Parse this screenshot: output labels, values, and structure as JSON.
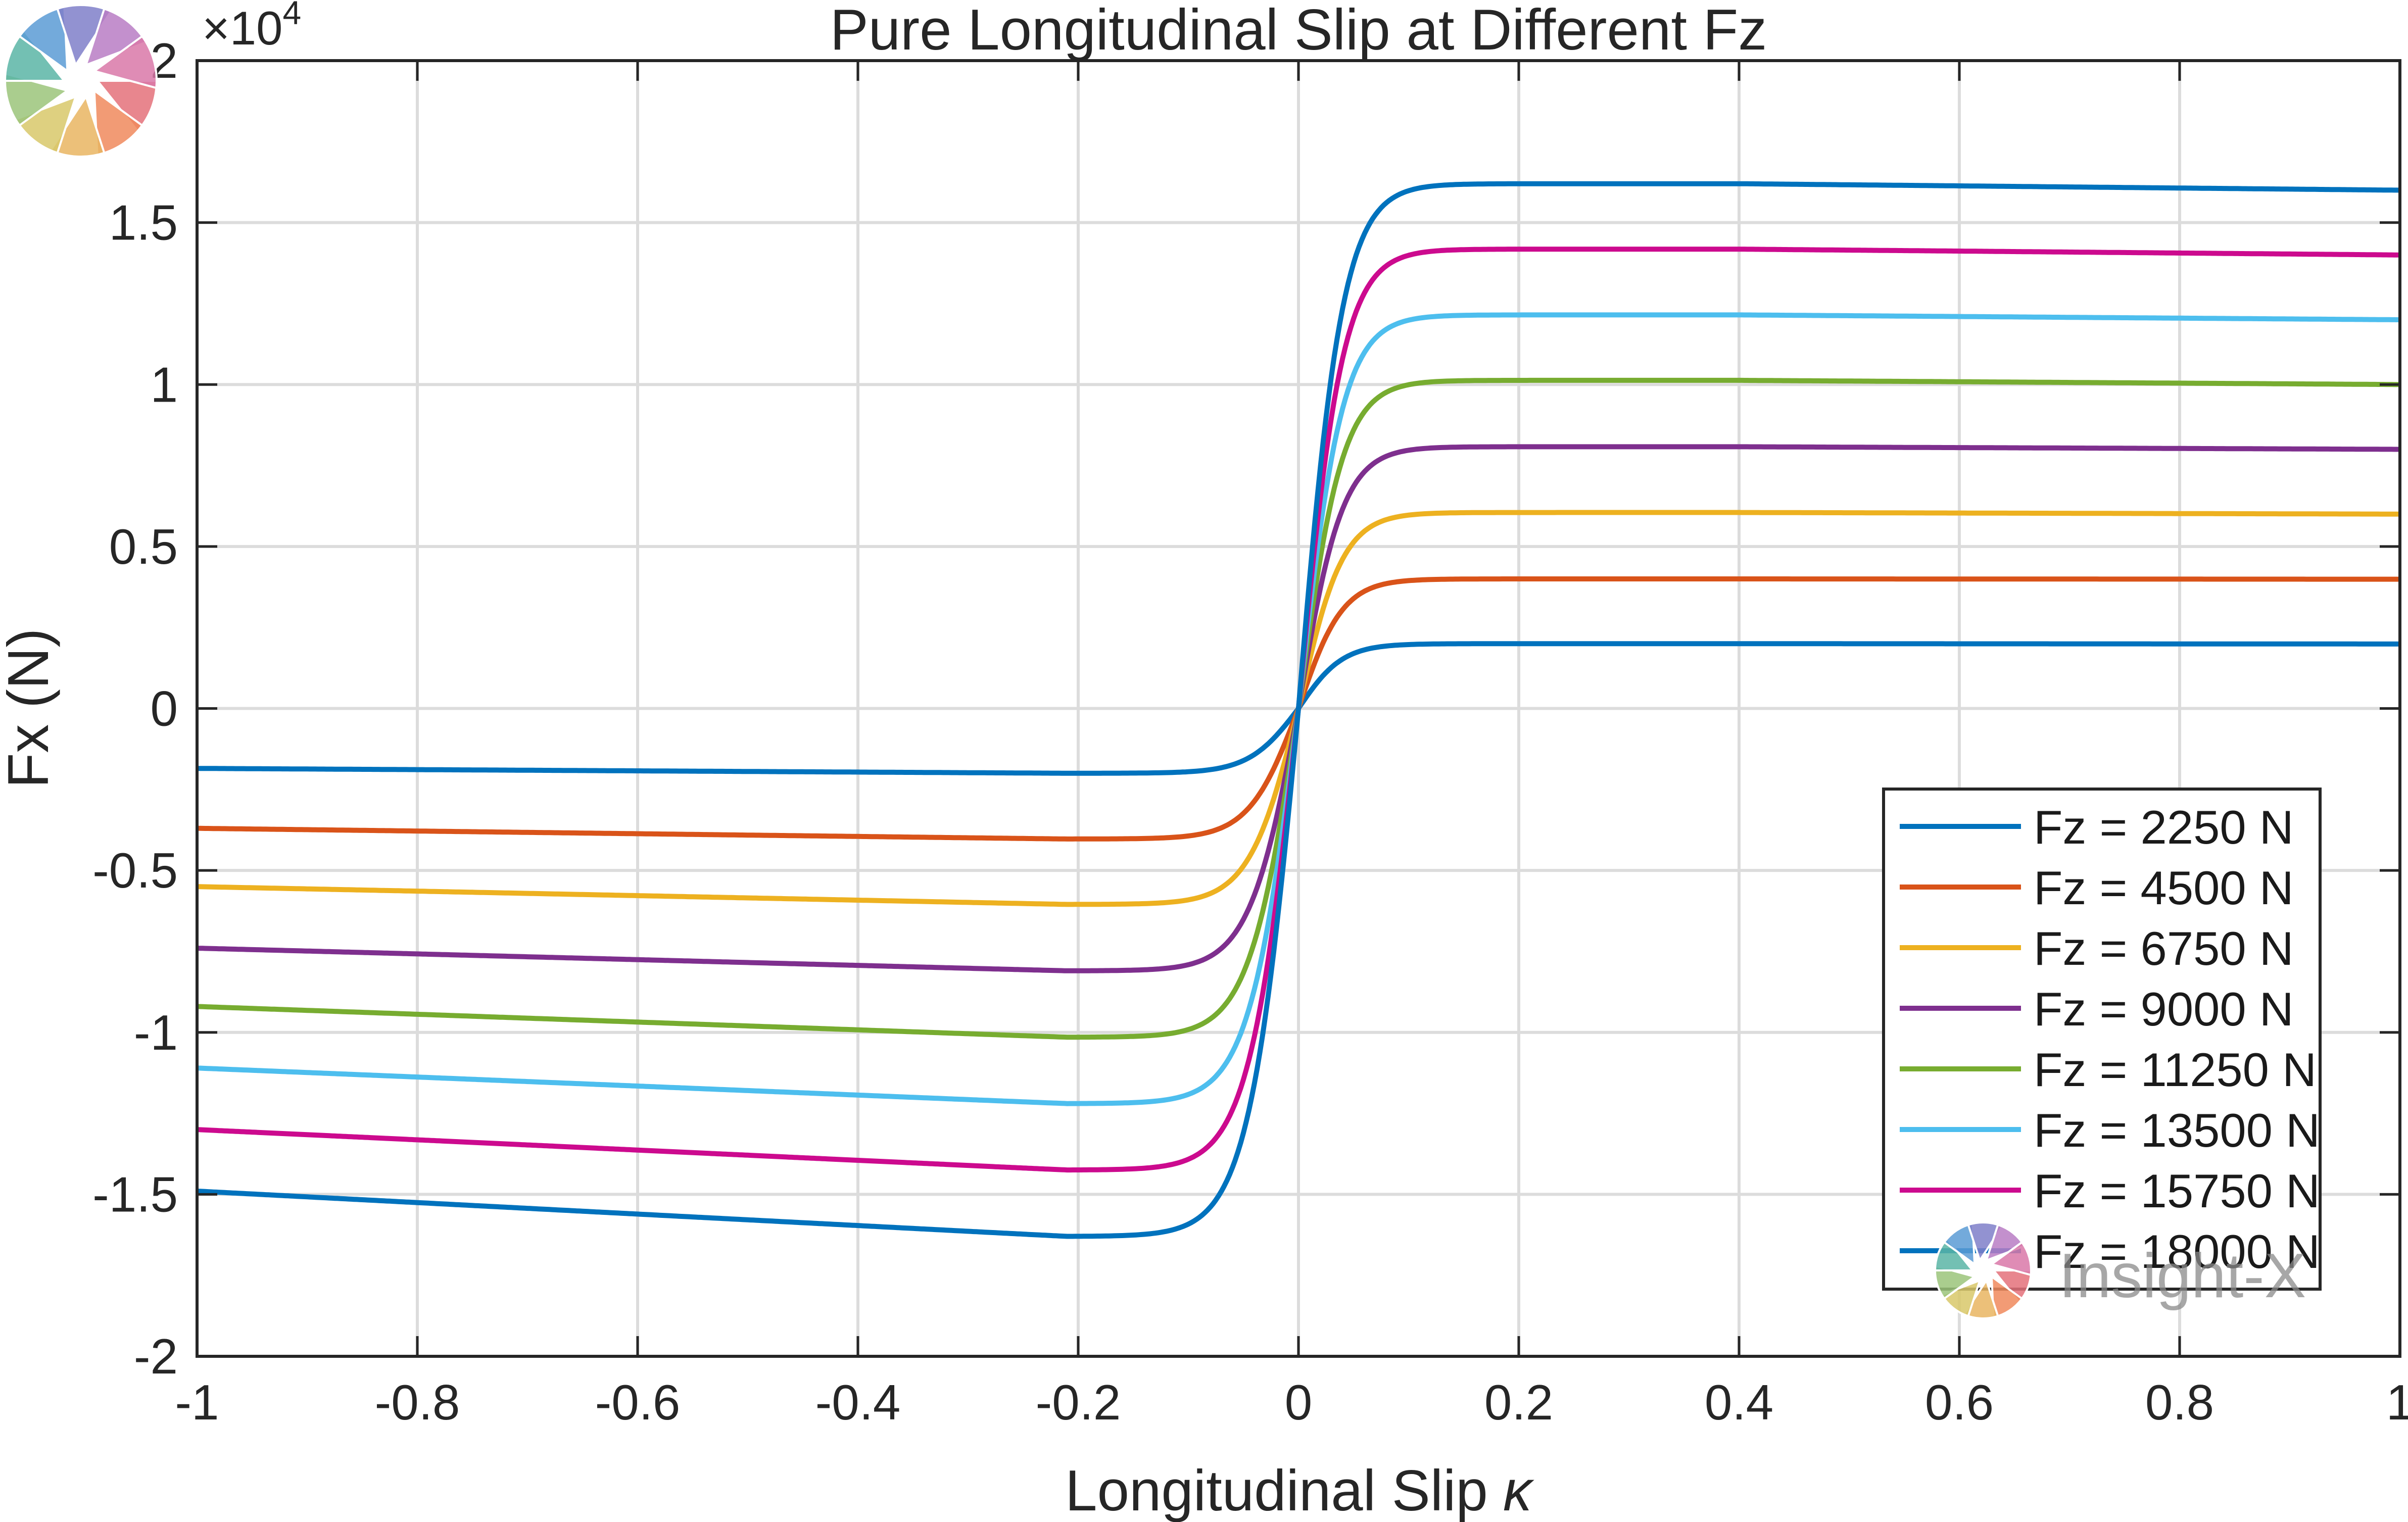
{
  "chart_data": {
    "type": "line",
    "title": "Pure Longitudinal Slip at Different Fz",
    "xlabel": "Longitudinal  Slip",
    "xlabel_symbol": "κ",
    "ylabel": "Fx (N)",
    "y_multiplier_label": "×10",
    "y_multiplier_exponent": "4",
    "xlim": [
      -1,
      1
    ],
    "ylim": [
      -20000,
      20000
    ],
    "x_ticks": [
      -1,
      -0.8,
      -0.6,
      -0.4,
      -0.2,
      0,
      0.2,
      0.4,
      0.6,
      0.8,
      1
    ],
    "x_tick_labels": [
      "-1",
      "-0.8",
      "-0.6",
      "-0.4",
      "-0.2",
      "0",
      "0.2",
      "0.4",
      "0.6",
      "0.8",
      "1"
    ],
    "y_ticks": [
      -20000,
      -15000,
      -10000,
      -5000,
      0,
      5000,
      10000,
      15000,
      20000
    ],
    "y_tick_labels": [
      "-2",
      "-1.5",
      "-1",
      "-0.5",
      "0",
      "0.5",
      "1",
      "1.5",
      "2"
    ],
    "grid": true,
    "legend_position": "bottom-right",
    "series": [
      {
        "name": "Fz = 2250 N",
        "color": "#0072BD",
        "peak_pos": 2000,
        "end_pos": 1990,
        "peak_neg": -2000,
        "end_neg": -1850
      },
      {
        "name": "Fz = 4500 N",
        "color": "#D95319",
        "peak_pos": 4000,
        "end_pos": 3990,
        "peak_neg": -4030,
        "end_neg": -3700
      },
      {
        "name": "Fz = 6750 N",
        "color": "#EDB120",
        "peak_pos": 6050,
        "end_pos": 6000,
        "peak_neg": -6050,
        "end_neg": -5500
      },
      {
        "name": "Fz = 9000 N",
        "color": "#7E2F8E",
        "peak_pos": 8080,
        "end_pos": 8000,
        "peak_neg": -8100,
        "end_neg": -7400
      },
      {
        "name": "Fz = 11250 N",
        "color": "#77AC30",
        "peak_pos": 10130,
        "end_pos": 10000,
        "peak_neg": -10150,
        "end_neg": -9200
      },
      {
        "name": "Fz = 13500 N",
        "color": "#4DBEEE",
        "peak_pos": 12150,
        "end_pos": 12000,
        "peak_neg": -12200,
        "end_neg": -11100
      },
      {
        "name": "Fz = 15750 N",
        "color": "#CC0A8E",
        "peak_pos": 14180,
        "end_pos": 14000,
        "peak_neg": -14250,
        "end_neg": -13000
      },
      {
        "name": "Fz = 18000 N",
        "color": "#0072BD",
        "peak_pos": 16200,
        "end_pos": 16000,
        "peak_neg": -16300,
        "end_neg": -14900
      }
    ]
  },
  "watermark": {
    "text": "Insight-X",
    "logo_colors": [
      "#E4717A",
      "#F08A5D",
      "#E9B562",
      "#D8C86A",
      "#9BC47A",
      "#5BB5A6",
      "#5B9BD5",
      "#7F7FC9",
      "#B97CC4",
      "#D978A8"
    ]
  }
}
